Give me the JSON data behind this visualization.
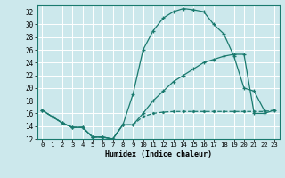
{
  "xlabel": "Humidex (Indice chaleur)",
  "bg_color": "#cce8ec",
  "grid_color": "#ffffff",
  "line_color": "#1a7a6e",
  "xlim": [
    -0.5,
    23.5
  ],
  "ylim": [
    12,
    33
  ],
  "xticks": [
    0,
    1,
    2,
    3,
    4,
    5,
    6,
    7,
    8,
    9,
    10,
    11,
    12,
    13,
    14,
    15,
    16,
    17,
    18,
    19,
    20,
    21,
    22,
    23
  ],
  "yticks": [
    12,
    14,
    16,
    18,
    20,
    22,
    24,
    26,
    28,
    30,
    32
  ],
  "line1_x": [
    0,
    1,
    2,
    3,
    4,
    5,
    6,
    7,
    8,
    9,
    10,
    11,
    12,
    13,
    14,
    15,
    16,
    17,
    18,
    19,
    20,
    21,
    22
  ],
  "line1_y": [
    16.5,
    15.5,
    14.5,
    13.8,
    13.8,
    12.3,
    12.3,
    12.0,
    14.2,
    19.0,
    26.0,
    29.0,
    31.0,
    32.0,
    32.5,
    32.3,
    32.0,
    30.0,
    28.5,
    25.0,
    20.0,
    19.5,
    16.5
  ],
  "line2_x": [
    0,
    1,
    2,
    3,
    4,
    5,
    6,
    7,
    8,
    9,
    10,
    11,
    12,
    13,
    14,
    15,
    16,
    17,
    18,
    19,
    20,
    21,
    22,
    23
  ],
  "line2_y": [
    16.5,
    15.5,
    14.5,
    13.8,
    13.8,
    12.3,
    12.3,
    12.0,
    14.2,
    14.2,
    16.0,
    18.0,
    19.5,
    21.0,
    22.0,
    23.0,
    24.0,
    24.5,
    25.0,
    25.3,
    25.3,
    16.0,
    16.0,
    16.5
  ],
  "line3_x": [
    0,
    1,
    2,
    3,
    4,
    5,
    6,
    7,
    8,
    9,
    10,
    11,
    12,
    13,
    14,
    15,
    16,
    17,
    18,
    19,
    20,
    21,
    22,
    23
  ],
  "line3_y": [
    16.5,
    15.5,
    14.5,
    13.8,
    13.8,
    12.3,
    12.3,
    12.0,
    14.2,
    14.2,
    15.5,
    16.0,
    16.2,
    16.3,
    16.3,
    16.3,
    16.3,
    16.3,
    16.3,
    16.3,
    16.3,
    16.3,
    16.3,
    16.5
  ],
  "xlabel_fontsize": 6.0,
  "tick_fontsize": 5.2,
  "linewidth": 0.9,
  "markersize": 3.5
}
